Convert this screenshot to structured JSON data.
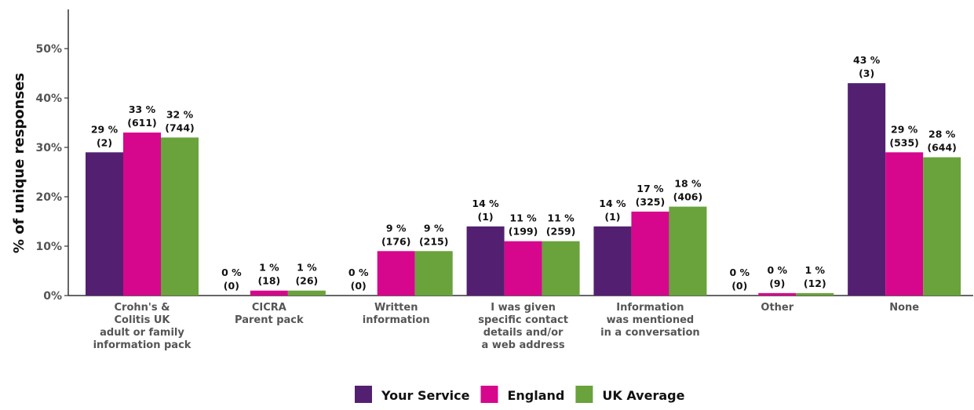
{
  "chart_data": {
    "type": "bar",
    "ylabel": "% of unique responses",
    "ylim": [
      0,
      50
    ],
    "yticks": [
      "0%",
      "10%",
      "20%",
      "30%",
      "40%",
      "50%"
    ],
    "grid": false,
    "legend_position": "bottom",
    "categories": [
      [
        "Crohn's &",
        "Colitis UK",
        "adult or family",
        "information pack"
      ],
      [
        "CICRA",
        "Parent pack"
      ],
      [
        "Written",
        "information"
      ],
      [
        "I was given",
        "specific contact",
        "details and/or",
        "a web address"
      ],
      [
        "Information",
        "was mentioned",
        "in a conversation"
      ],
      [
        "Other"
      ],
      [
        "None"
      ]
    ],
    "series": [
      {
        "name": "Your Service",
        "color": "#532071",
        "values": [
          29,
          0,
          0,
          14,
          14,
          0,
          43
        ],
        "labels": [
          "29 %",
          "0 %",
          "0 %",
          "14 %",
          "14 %",
          "0 %",
          "43 %"
        ],
        "counts": [
          "(2)",
          "(0)",
          "(0)",
          "(1)",
          "(1)",
          "(0)",
          "(3)"
        ]
      },
      {
        "name": "England",
        "color": "#D6078C",
        "values": [
          33,
          1,
          9,
          11,
          17,
          0.5,
          29
        ],
        "labels": [
          "33 %",
          "1 %",
          "9 %",
          "11 %",
          "17 %",
          "0 %",
          "29 %"
        ],
        "counts": [
          "(611)",
          "(18)",
          "(176)",
          "(199)",
          "(325)",
          "(9)",
          "(535)"
        ]
      },
      {
        "name": "UK Average",
        "color": "#6AA23C",
        "values": [
          32,
          1,
          9,
          11,
          18,
          0.5,
          28
        ],
        "labels": [
          "32 %",
          "1 %",
          "9 %",
          "11 %",
          "18 %",
          "1 %",
          "28 %"
        ],
        "counts": [
          "(744)",
          "(26)",
          "(215)",
          "(259)",
          "(406)",
          "(12)",
          "(644)"
        ]
      }
    ]
  }
}
